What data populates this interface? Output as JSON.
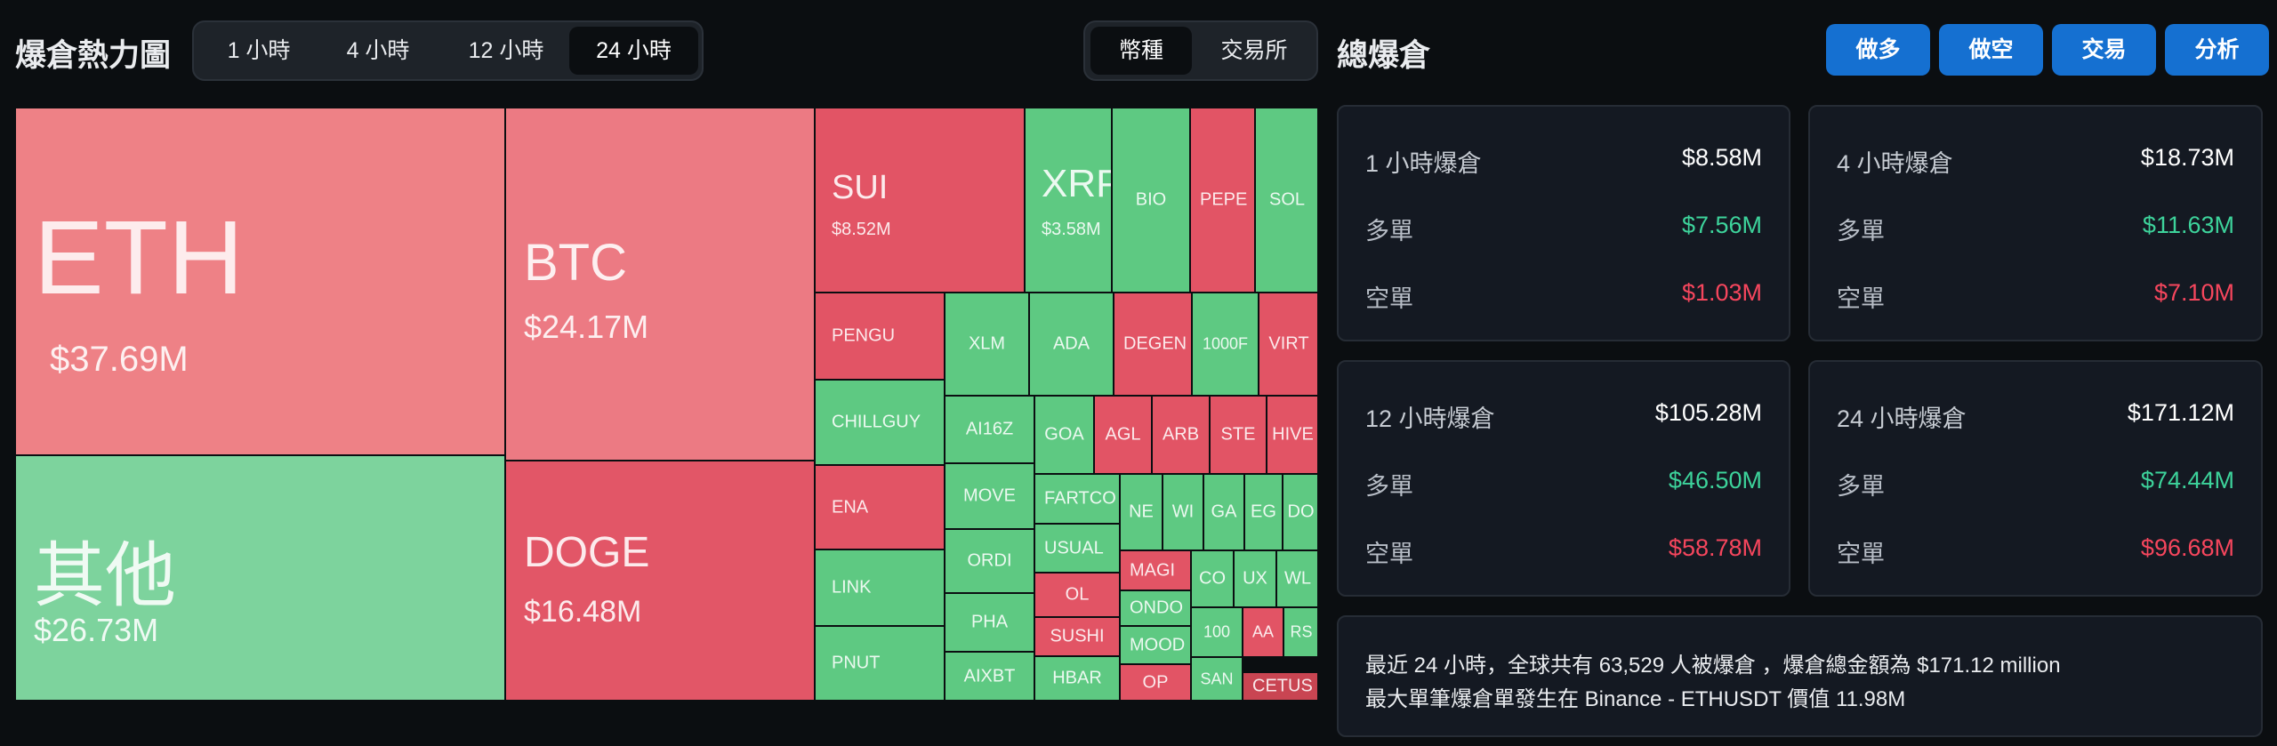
{
  "heatmap": {
    "title": "爆倉熱力圖",
    "time_tabs": [
      "1 小時",
      "4 小時",
      "12 小時",
      "24 小時"
    ],
    "active_time_tab": "24 小時",
    "view_tabs": [
      "幣種",
      "交易所"
    ],
    "active_view_tab": "幣種",
    "colors": {
      "long_green": "#5ec982",
      "short_red": "#e25465"
    },
    "tiles": [
      {
        "name": "ETH",
        "value": "$37.69M",
        "color": "#ee8186"
      },
      {
        "name": "其他",
        "value": "$26.73M",
        "color": "#7dd39d"
      },
      {
        "name": "BTC",
        "value": "$24.17M",
        "color": "#ec7a83"
      },
      {
        "name": "DOGE",
        "value": "$16.48M",
        "color": "#e25667"
      },
      {
        "name": "SUI",
        "value": "$8.52M",
        "color": "#e25465"
      },
      {
        "name": "XRP",
        "value": "$3.58M",
        "color": "#5ec982"
      },
      {
        "name": "BIO",
        "color": "#5ec982"
      },
      {
        "name": "PEPE",
        "color": "#e25465"
      },
      {
        "name": "SOL",
        "color": "#5ec982"
      },
      {
        "name": "PENGU",
        "color": "#e25465"
      },
      {
        "name": "XLM",
        "color": "#5ec982"
      },
      {
        "name": "ADA",
        "color": "#5ec982"
      },
      {
        "name": "DEGEN",
        "color": "#e25465"
      },
      {
        "name": "1000F",
        "color": "#5ec982"
      },
      {
        "name": "VIRT",
        "color": "#e25465"
      },
      {
        "name": "CHILLGUY",
        "color": "#5ec982"
      },
      {
        "name": "AI16Z",
        "color": "#5ec982"
      },
      {
        "name": "GOA",
        "color": "#5ec982"
      },
      {
        "name": "AGL",
        "color": "#e25465"
      },
      {
        "name": "ARB",
        "color": "#e25465"
      },
      {
        "name": "STE",
        "color": "#e25465"
      },
      {
        "name": "HIVE",
        "color": "#e25465"
      },
      {
        "name": "ENA",
        "color": "#e25465"
      },
      {
        "name": "MOVE",
        "color": "#5ec982"
      },
      {
        "name": "FARTCO",
        "color": "#5ec982"
      },
      {
        "name": "NE",
        "color": "#5ec982"
      },
      {
        "name": "WI",
        "color": "#5ec982"
      },
      {
        "name": "GA",
        "color": "#5ec982"
      },
      {
        "name": "EG",
        "color": "#5ec982"
      },
      {
        "name": "DO",
        "color": "#5ec982"
      },
      {
        "name": "ORDI",
        "color": "#5ec982"
      },
      {
        "name": "USUAL",
        "color": "#5ec982"
      },
      {
        "name": "LINK",
        "color": "#5ec982"
      },
      {
        "name": "MAGI",
        "color": "#e25465"
      },
      {
        "name": "CO",
        "color": "#5ec982"
      },
      {
        "name": "UX",
        "color": "#5ec982"
      },
      {
        "name": "WL",
        "color": "#5ec982"
      },
      {
        "name": "OL",
        "color": "#e25465"
      },
      {
        "name": "ONDO",
        "color": "#5ec982"
      },
      {
        "name": "PHA",
        "color": "#5ec982"
      },
      {
        "name": "SUSHI",
        "color": "#e25465"
      },
      {
        "name": "100",
        "color": "#5ec982"
      },
      {
        "name": "AA",
        "color": "#e25465"
      },
      {
        "name": "RS",
        "color": "#5ec982"
      },
      {
        "name": "MOOD",
        "color": "#5ec982"
      },
      {
        "name": "PNUT",
        "color": "#5ec982"
      },
      {
        "name": "AIXBT",
        "color": "#5ec982"
      },
      {
        "name": "HBAR",
        "color": "#5ec982"
      },
      {
        "name": "OP",
        "color": "#e25465"
      },
      {
        "name": "SAN",
        "color": "#5ec982"
      },
      {
        "name": "CETUS",
        "color": "#c94552"
      }
    ]
  },
  "total": {
    "title": "總爆倉",
    "buttons": [
      "做多",
      "做空",
      "交易",
      "分析"
    ],
    "long_label": "多單",
    "short_label": "空單",
    "cards": [
      {
        "label": "1 小時爆倉",
        "total": "$8.58M",
        "long": "$7.56M",
        "short": "$1.03M"
      },
      {
        "label": "4 小時爆倉",
        "total": "$18.73M",
        "long": "$11.63M",
        "short": "$7.10M"
      },
      {
        "label": "12 小時爆倉",
        "total": "$105.28M",
        "long": "$46.50M",
        "short": "$58.78M"
      },
      {
        "label": "24 小時爆倉",
        "total": "$171.12M",
        "long": "$74.44M",
        "short": "$96.68M"
      }
    ],
    "summary_line1": "最近 24 小時，全球共有 63,529 人被爆倉 ，爆倉總金額為 $171.12 million",
    "summary_line2": "最大單筆爆倉單發生在 Binance - ETHUSDT 價值 11.98M"
  }
}
